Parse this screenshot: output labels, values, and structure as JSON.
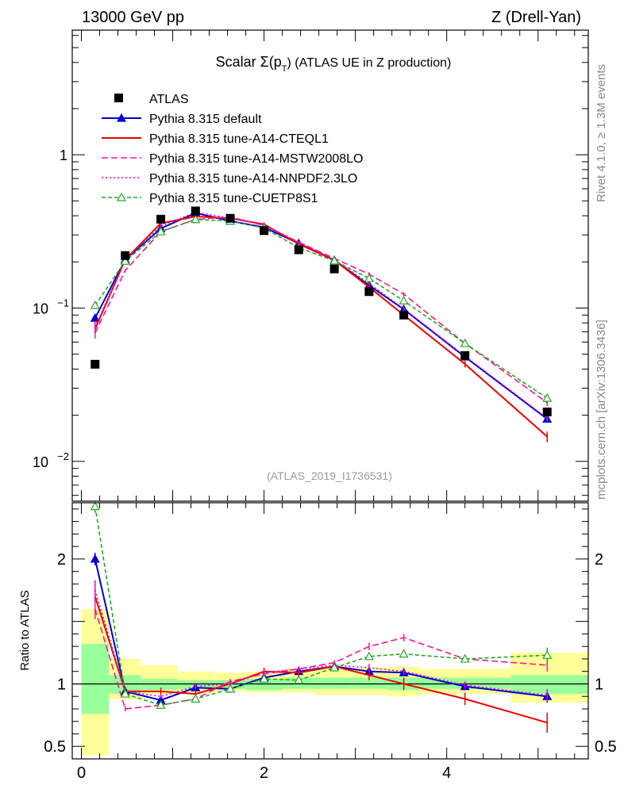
{
  "header": {
    "energy": "13000 GeV pp",
    "process": "Z (Drell-Yan)",
    "side_info": "Rivet 4.1.0, ≥ 1.3M events",
    "side_source": "mcplots.cern.ch [arXiv:1306.3436]",
    "analysis_id": "(ATLAS_2019_I1736531)"
  },
  "chart_data": {
    "type": "line",
    "title_prefix": "Scalar Σ(p",
    "title_sub": "T",
    "title_suffix": ") (ATLAS UE in Z production)",
    "ylabel_ratio": "Ratio to ATLAS",
    "main": {
      "yscale": "log",
      "ylim": [
        0.0055,
        6.5
      ],
      "yticks": [
        {
          "v": 1,
          "label": "1"
        },
        {
          "v": 0.1,
          "label": "10",
          "exp": "−1"
        },
        {
          "v": 0.01,
          "label": "10",
          "exp": "−2"
        }
      ]
    },
    "ratio": {
      "ylim": [
        0.4,
        2.45
      ],
      "yticks": [
        {
          "v": 0.5,
          "label": "0.5"
        },
        {
          "v": 1,
          "label": "1"
        },
        {
          "v": 2,
          "label": "2"
        }
      ]
    },
    "xlim": [
      -0.1,
      5.55
    ],
    "xticks": [
      {
        "v": 0,
        "label": "0"
      },
      {
        "v": 2,
        "label": "2"
      },
      {
        "v": 4,
        "label": "4"
      }
    ],
    "x": [
      0.15,
      0.48,
      0.87,
      1.25,
      1.63,
      2.0,
      2.38,
      2.77,
      3.15,
      3.53,
      4.2,
      5.1
    ],
    "bins": [
      0.0,
      0.3,
      0.65,
      1.05,
      1.45,
      1.8,
      2.2,
      2.55,
      2.95,
      3.35,
      3.7,
      4.7,
      5.55
    ],
    "data": {
      "name": "ATLAS",
      "values": [
        0.043,
        0.22,
        0.38,
        0.43,
        0.385,
        0.32,
        0.24,
        0.18,
        0.128,
        0.09,
        0.049,
        0.021
      ]
    },
    "bands": {
      "stat_lo": [
        0.76,
        0.92,
        0.95,
        0.96,
        0.96,
        0.95,
        0.96,
        0.96,
        0.96,
        0.95,
        0.96,
        0.92
      ],
      "stat_hi": [
        1.32,
        1.07,
        1.04,
        1.03,
        1.03,
        1.04,
        1.05,
        1.05,
        1.05,
        1.05,
        1.05,
        1.07
      ],
      "tot_lo": [
        0.43,
        0.88,
        0.92,
        0.93,
        0.94,
        0.93,
        0.93,
        0.91,
        0.91,
        0.9,
        0.92,
        0.85
      ],
      "tot_hi": [
        1.6,
        1.2,
        1.15,
        1.1,
        1.09,
        1.1,
        1.12,
        1.12,
        1.13,
        1.14,
        1.12,
        1.25
      ]
    },
    "series": [
      {
        "name": "Pythia 8.315 default",
        "color": "#0000cc",
        "dash": "",
        "marker": "triangle",
        "fill": true,
        "ratio": [
          2.0,
          0.94,
          0.87,
          0.97,
          0.96,
          1.05,
          1.1,
          1.14,
          1.1,
          1.09,
          0.98,
          0.9
        ],
        "err": [
          0.05,
          0.02,
          0.02,
          0.02,
          0.02,
          0.02,
          0.02,
          0.02,
          0.02,
          0.03,
          0.03,
          0.05
        ]
      },
      {
        "name": "Pythia 8.315 tune-A14-CTEQL1",
        "color": "#ee0000",
        "dash": "",
        "marker": "none",
        "fill": false,
        "ratio": [
          1.7,
          0.94,
          0.94,
          0.92,
          1.0,
          1.1,
          1.09,
          1.14,
          1.07,
          1.0,
          0.88,
          0.69
        ],
        "err": [
          0.08,
          0.03,
          0.03,
          0.03,
          0.03,
          0.03,
          0.03,
          0.03,
          0.04,
          0.05,
          0.05,
          0.08
        ]
      },
      {
        "name": "Pythia 8.315 tune-A14-MSTW2008LO",
        "color": "#ff1493",
        "dash": "8,4",
        "marker": "none",
        "fill": false,
        "ratio": [
          1.6,
          0.8,
          0.83,
          0.88,
          1.02,
          1.08,
          1.12,
          1.17,
          1.3,
          1.37,
          1.2,
          1.15
        ],
        "err": [
          0.08,
          0.02,
          0.02,
          0.02,
          0.02,
          0.02,
          0.02,
          0.02,
          0.03,
          0.03,
          0.03,
          0.05
        ]
      },
      {
        "name": "Pythia 8.315 tune-A14-NNPDF2.3LO",
        "color": "#ee00cc",
        "dash": "2,3",
        "marker": "none",
        "fill": false,
        "ratio": [
          1.75,
          0.94,
          0.9,
          0.98,
          1.0,
          1.09,
          1.12,
          1.15,
          1.13,
          1.1,
          0.99,
          0.91
        ],
        "err": [
          0.08,
          0.02,
          0.02,
          0.02,
          0.02,
          0.02,
          0.02,
          0.02,
          0.03,
          0.03,
          0.03,
          0.05
        ]
      },
      {
        "name": "Pythia 8.315 tune-CUETP8S1",
        "color": "#22aa22",
        "dash": "5,3",
        "marker": "triangle",
        "fill": false,
        "ratio": [
          2.42,
          0.92,
          0.83,
          0.88,
          0.96,
          1.04,
          1.03,
          1.13,
          1.22,
          1.24,
          1.2,
          1.23
        ],
        "err": [
          0.05,
          0.02,
          0.02,
          0.02,
          0.02,
          0.02,
          0.02,
          0.02,
          0.03,
          0.03,
          0.03,
          0.06
        ]
      }
    ]
  }
}
